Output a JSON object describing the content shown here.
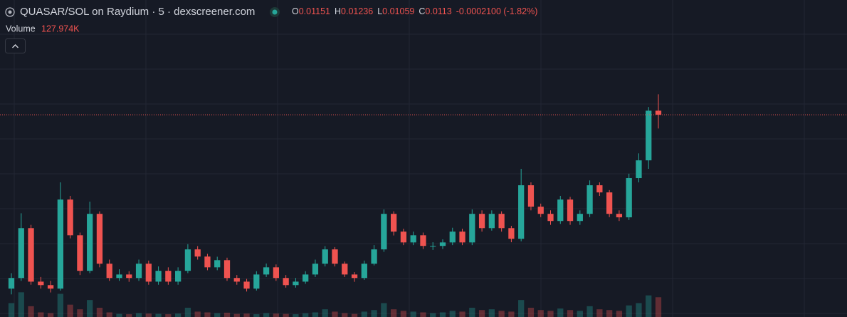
{
  "chart_data": {
    "type": "candlestick",
    "title": "QUASAR/SOL on Raydium · 5 · dexscreener.com",
    "ohlc_letters": [
      "O",
      "H",
      "L",
      "C"
    ],
    "change_label": "-0.0002100 (-1.82%)",
    "volume_title": "Volume",
    "last_volume_label": "127.974K",
    "up_color": "#26a69a",
    "down_color": "#ef5350",
    "ylim": [
      0.00083,
      0.01724
    ],
    "vlim": [
      0,
      600000
    ],
    "open": [
      0.0023,
      0.00285,
      0.00543,
      0.00266,
      0.00248,
      0.0023,
      0.00691,
      0.00506,
      0.00322,
      0.00617,
      0.00359,
      0.00285,
      0.00303,
      0.00285,
      0.00359,
      0.00266,
      0.00322,
      0.00266,
      0.00322,
      0.00433,
      0.00396,
      0.0034,
      0.00377,
      0.00285,
      0.00266,
      0.0023,
      0.00303,
      0.0034,
      0.00285,
      0.00248,
      0.00266,
      0.00303,
      0.00359,
      0.00433,
      0.00359,
      0.00303,
      0.00285,
      0.00359,
      0.00433,
      0.00617,
      0.00525,
      0.00469,
      0.00506,
      0.00451,
      0.00451,
      0.00469,
      0.00525,
      0.00469,
      0.00617,
      0.00543,
      0.00617,
      0.00543,
      0.00488,
      0.00765,
      0.00654,
      0.00617,
      0.0058,
      0.00691,
      0.0058,
      0.00617,
      0.00765,
      0.00728,
      0.00617,
      0.00599,
      0.00802,
      0.00894,
      0.01151
    ],
    "high": [
      0.0031,
      0.0062,
      0.0056,
      0.0029,
      0.0027,
      0.0078,
      0.0071,
      0.0052,
      0.0068,
      0.0063,
      0.0038,
      0.0033,
      0.0032,
      0.0038,
      0.00375,
      0.00345,
      0.0034,
      0.0034,
      0.0046,
      0.0045,
      0.0041,
      0.00395,
      0.0039,
      0.003,
      0.0028,
      0.0032,
      0.0036,
      0.00355,
      0.003,
      0.00285,
      0.0032,
      0.0038,
      0.0045,
      0.00445,
      0.0037,
      0.00315,
      0.00375,
      0.00455,
      0.0064,
      0.0063,
      0.0054,
      0.00525,
      0.0052,
      0.0047,
      0.00485,
      0.00545,
      0.0054,
      0.0064,
      0.00635,
      0.00635,
      0.0063,
      0.00555,
      0.0085,
      0.0078,
      0.0067,
      0.00635,
      0.0071,
      0.00705,
      0.00635,
      0.0079,
      0.0078,
      0.0074,
      0.00635,
      0.00825,
      0.0093,
      0.0117,
      0.01236
    ],
    "low": [
      0.002,
      0.0027,
      0.0025,
      0.0023,
      0.0021,
      0.0022,
      0.0049,
      0.003,
      0.0031,
      0.0034,
      0.0027,
      0.0027,
      0.00265,
      0.0027,
      0.0025,
      0.0025,
      0.0025,
      0.0025,
      0.0031,
      0.0038,
      0.00325,
      0.00325,
      0.0027,
      0.0025,
      0.00215,
      0.0022,
      0.0029,
      0.0027,
      0.00235,
      0.00235,
      0.00255,
      0.0029,
      0.00345,
      0.00345,
      0.0029,
      0.00265,
      0.00275,
      0.0035,
      0.0042,
      0.00505,
      0.00455,
      0.00455,
      0.00435,
      0.0043,
      0.00435,
      0.00455,
      0.00455,
      0.00455,
      0.00525,
      0.0053,
      0.00525,
      0.0047,
      0.00475,
      0.00635,
      0.006,
      0.0056,
      0.00565,
      0.0056,
      0.0056,
      0.006,
      0.0071,
      0.006,
      0.0058,
      0.00585,
      0.0078,
      0.0085,
      0.01059
    ],
    "close": [
      0.00285,
      0.00543,
      0.00266,
      0.00248,
      0.0023,
      0.00691,
      0.00506,
      0.00322,
      0.00617,
      0.00359,
      0.00285,
      0.00303,
      0.00285,
      0.00359,
      0.00266,
      0.00322,
      0.00266,
      0.00322,
      0.00433,
      0.00396,
      0.0034,
      0.00377,
      0.00285,
      0.00266,
      0.0023,
      0.00303,
      0.0034,
      0.00285,
      0.00248,
      0.00266,
      0.00303,
      0.00359,
      0.00433,
      0.00359,
      0.00303,
      0.00285,
      0.00359,
      0.00433,
      0.00617,
      0.00525,
      0.00469,
      0.00506,
      0.00451,
      0.00451,
      0.00469,
      0.00525,
      0.00469,
      0.00617,
      0.00543,
      0.00617,
      0.00543,
      0.00488,
      0.00765,
      0.00654,
      0.00617,
      0.0058,
      0.00691,
      0.0058,
      0.00617,
      0.00765,
      0.00728,
      0.00617,
      0.00599,
      0.00802,
      0.00894,
      0.01151,
      0.0113
    ],
    "volume": [
      90000,
      160000,
      70000,
      30000,
      25000,
      150000,
      80000,
      50000,
      110000,
      60000,
      30000,
      20000,
      18000,
      25000,
      22000,
      20000,
      18000,
      22000,
      60000,
      35000,
      30000,
      25000,
      28000,
      20000,
      22000,
      18000,
      25000,
      22000,
      20000,
      18000,
      24000,
      30000,
      50000,
      35000,
      25000,
      20000,
      35000,
      45000,
      90000,
      50000,
      40000,
      35000,
      30000,
      25000,
      30000,
      40000,
      35000,
      60000,
      45000,
      50000,
      40000,
      35000,
      110000,
      60000,
      45000,
      40000,
      55000,
      45000,
      40000,
      70000,
      50000,
      45000,
      40000,
      75000,
      90000,
      140000,
      127974
    ]
  }
}
